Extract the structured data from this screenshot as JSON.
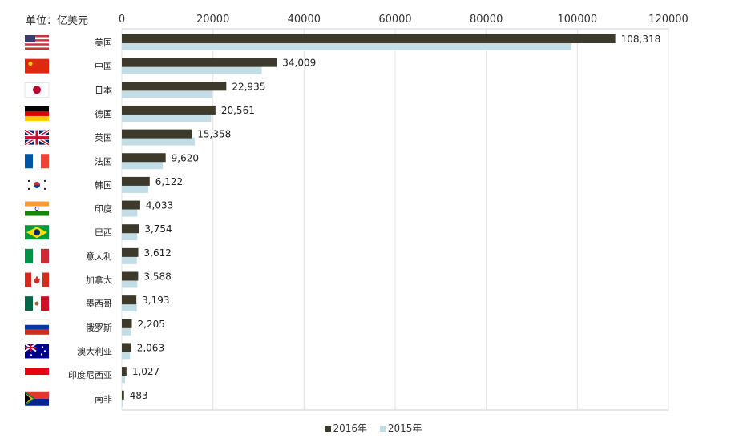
{
  "unit_label": "单位：亿美元",
  "colors": {
    "series_2016": "#3d3a2c",
    "series_2015": "#c3dde7",
    "grid": "#e3e3e3",
    "frame": "#d0d0d0"
  },
  "chart_data": {
    "type": "bar",
    "orientation": "horizontal",
    "xlim": [
      0,
      120000
    ],
    "xticks": [
      0,
      20000,
      40000,
      60000,
      80000,
      100000,
      120000
    ],
    "x_axis_position": "top",
    "grid": true,
    "legend_position": "bottom-center",
    "categories": [
      "美国",
      "中国",
      "日本",
      "德国",
      "英国",
      "法国",
      "韩国",
      "印度",
      "巴西",
      "意大利",
      "加拿大",
      "墨西哥",
      "俄罗斯",
      "澳大利亚",
      "印度尼西亚",
      "南非"
    ],
    "flags": [
      "us-flag-icon",
      "china-flag-icon",
      "japan-flag-icon",
      "germany-flag-icon",
      "uk-flag-icon",
      "france-flag-icon",
      "korea-flag-icon",
      "india-flag-icon",
      "brazil-flag-icon",
      "italy-flag-icon",
      "canada-flag-icon",
      "mexico-flag-icon",
      "russia-flag-icon",
      "australia-flag-icon",
      "indonesia-flag-icon",
      "south-africa-flag-icon"
    ],
    "series": [
      {
        "name": "2016年",
        "values": [
          108318,
          34009,
          22935,
          20561,
          15358,
          9620,
          6122,
          4033,
          3754,
          3612,
          3588,
          3193,
          2205,
          2063,
          1027,
          483
        ],
        "labels": [
          "108,318",
          "34,009",
          "22,935",
          "20,561",
          "15,358",
          "9,620",
          "6,122",
          "4,033",
          "3,754",
          "3,612",
          "3,588",
          "3,193",
          "2,205",
          "2,063",
          "1,027",
          "483"
        ]
      },
      {
        "name": "2015年",
        "values": [
          98700,
          30700,
          19800,
          19600,
          16000,
          9000,
          5800,
          3400,
          3400,
          3300,
          3400,
          3300,
          2000,
          1800,
          700,
          250
        ]
      }
    ]
  }
}
